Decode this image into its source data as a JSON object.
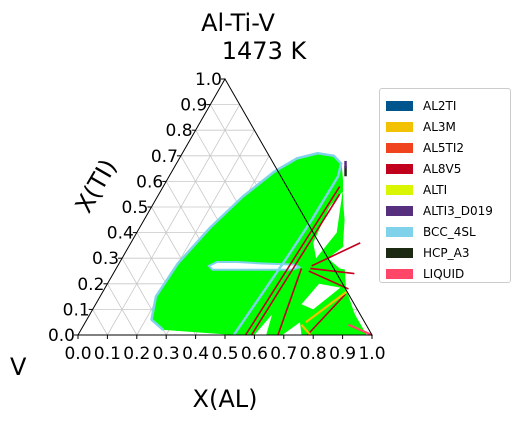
{
  "chart_data": {
    "type": "ternary-phase-diagram",
    "title": "Al-Ti-V",
    "subtitle": "1473  K",
    "xlabel": "X(AL)",
    "ylabel": "X(TI)",
    "corner_label": "V",
    "xlim": [
      0,
      1
    ],
    "ylim": [
      0,
      1
    ],
    "x_ticks": [
      "0.0",
      "0.1",
      "0.2",
      "0.3",
      "0.4",
      "0.5",
      "0.6",
      "0.7",
      "0.8",
      "0.9",
      "1.0"
    ],
    "y_ticks": [
      "0.0",
      "0.1",
      "0.2",
      "0.3",
      "0.4",
      "0.5",
      "0.6",
      "0.7",
      "0.8",
      "0.9",
      "1.0"
    ],
    "grid": true,
    "legend_position": "right",
    "legend": [
      {
        "name": "AL2TI",
        "color": "#00558c"
      },
      {
        "name": "AL3M",
        "color": "#f2c200"
      },
      {
        "name": "AL5TI2",
        "color": "#f0421c"
      },
      {
        "name": "AL8V5",
        "color": "#c0001c"
      },
      {
        "name": "ALTI",
        "color": "#d9f500"
      },
      {
        "name": "ALTI3_D019",
        "color": "#56307e"
      },
      {
        "name": "BCC_4SL",
        "color": "#7fd2ea"
      },
      {
        "name": "HCP_A3",
        "color": "#1c2a14"
      },
      {
        "name": "LIQUID",
        "color": "#ff4568"
      }
    ],
    "bcc_boundary": [
      [
        0.28,
        0.02
      ],
      [
        0.22,
        0.06
      ],
      [
        0.19,
        0.15
      ],
      [
        0.2,
        0.28
      ],
      [
        0.24,
        0.42
      ],
      [
        0.29,
        0.54
      ],
      [
        0.35,
        0.64
      ],
      [
        0.4,
        0.69
      ],
      [
        0.46,
        0.71
      ],
      [
        0.52,
        0.7
      ],
      [
        0.56,
        0.67
      ],
      [
        0.575,
        0.62
      ],
      [
        0.57,
        0.45
      ],
      [
        0.56,
        0.31
      ],
      [
        0.53,
        0.0
      ]
    ],
    "bcc_hole": [
      [
        0.31,
        0.27
      ],
      [
        0.33,
        0.255
      ],
      [
        0.4,
        0.255
      ],
      [
        0.48,
        0.255
      ],
      [
        0.6,
        0.255
      ],
      [
        0.62,
        0.265
      ],
      [
        0.6,
        0.275
      ],
      [
        0.48,
        0.28
      ],
      [
        0.4,
        0.285
      ],
      [
        0.33,
        0.285
      ]
    ],
    "green_region": [
      [
        0.53,
        0.0
      ],
      [
        0.57,
        0.45
      ],
      [
        0.575,
        0.62
      ],
      [
        0.56,
        0.67
      ],
      [
        0.6,
        0.6
      ],
      [
        0.64,
        0.52
      ],
      [
        0.68,
        0.45
      ],
      [
        0.72,
        0.36
      ],
      [
        0.82,
        0.18
      ],
      [
        0.9,
        0.08
      ],
      [
        0.96,
        0.02
      ],
      [
        0.98,
        0.0
      ]
    ],
    "al8v5_lines": [
      [
        [
          0.57,
          0.0
        ],
        [
          0.6,
          0.58
        ]
      ],
      [
        [
          0.59,
          0.0
        ],
        [
          0.615,
          0.55
        ]
      ],
      [
        [
          0.68,
          0.0
        ],
        [
          0.63,
          0.26
        ]
      ],
      [
        [
          0.66,
          0.26
        ],
        [
          0.82,
          0.24
        ]
      ],
      [
        [
          0.66,
          0.25
        ],
        [
          0.83,
          0.18
        ]
      ],
      [
        [
          0.66,
          0.27
        ],
        [
          0.78,
          0.36
        ]
      ],
      [
        [
          0.78,
          0.0
        ],
        [
          0.83,
          0.16
        ]
      ]
    ],
    "al3m_lines": [
      [
        [
          0.74,
          0.04
        ],
        [
          0.79,
          0.0
        ]
      ],
      [
        [
          0.75,
          0.05
        ],
        [
          0.83,
          0.17
        ]
      ]
    ],
    "liquid_line": [
      [
        0.9,
        0.04
      ],
      [
        1.0,
        0.0
      ]
    ],
    "hcp_line": [
      [
        0.58,
        0.66
      ],
      [
        0.6,
        0.62
      ]
    ],
    "alti3_line": [
      [
        0.57,
        0.68
      ],
      [
        0.585,
        0.65
      ]
    ],
    "white_regions": [
      [
        [
          0.605,
          0.5
        ],
        [
          0.62,
          0.36
        ],
        [
          0.66,
          0.3
        ],
        [
          0.68,
          0.4
        ],
        [
          0.62,
          0.56
        ]
      ],
      [
        [
          0.7,
          0.3
        ],
        [
          0.76,
          0.26
        ],
        [
          0.81,
          0.25
        ],
        [
          0.74,
          0.36
        ]
      ],
      [
        [
          0.72,
          0.2
        ],
        [
          0.8,
          0.185
        ],
        [
          0.75,
          0.1
        ],
        [
          0.7,
          0.12
        ]
      ],
      [
        [
          0.6,
          0.0
        ],
        [
          0.64,
          0.0
        ],
        [
          0.62,
          0.08
        ]
      ],
      [
        [
          0.695,
          0.0
        ],
        [
          0.76,
          0.0
        ],
        [
          0.73,
          0.05
        ]
      ]
    ]
  }
}
